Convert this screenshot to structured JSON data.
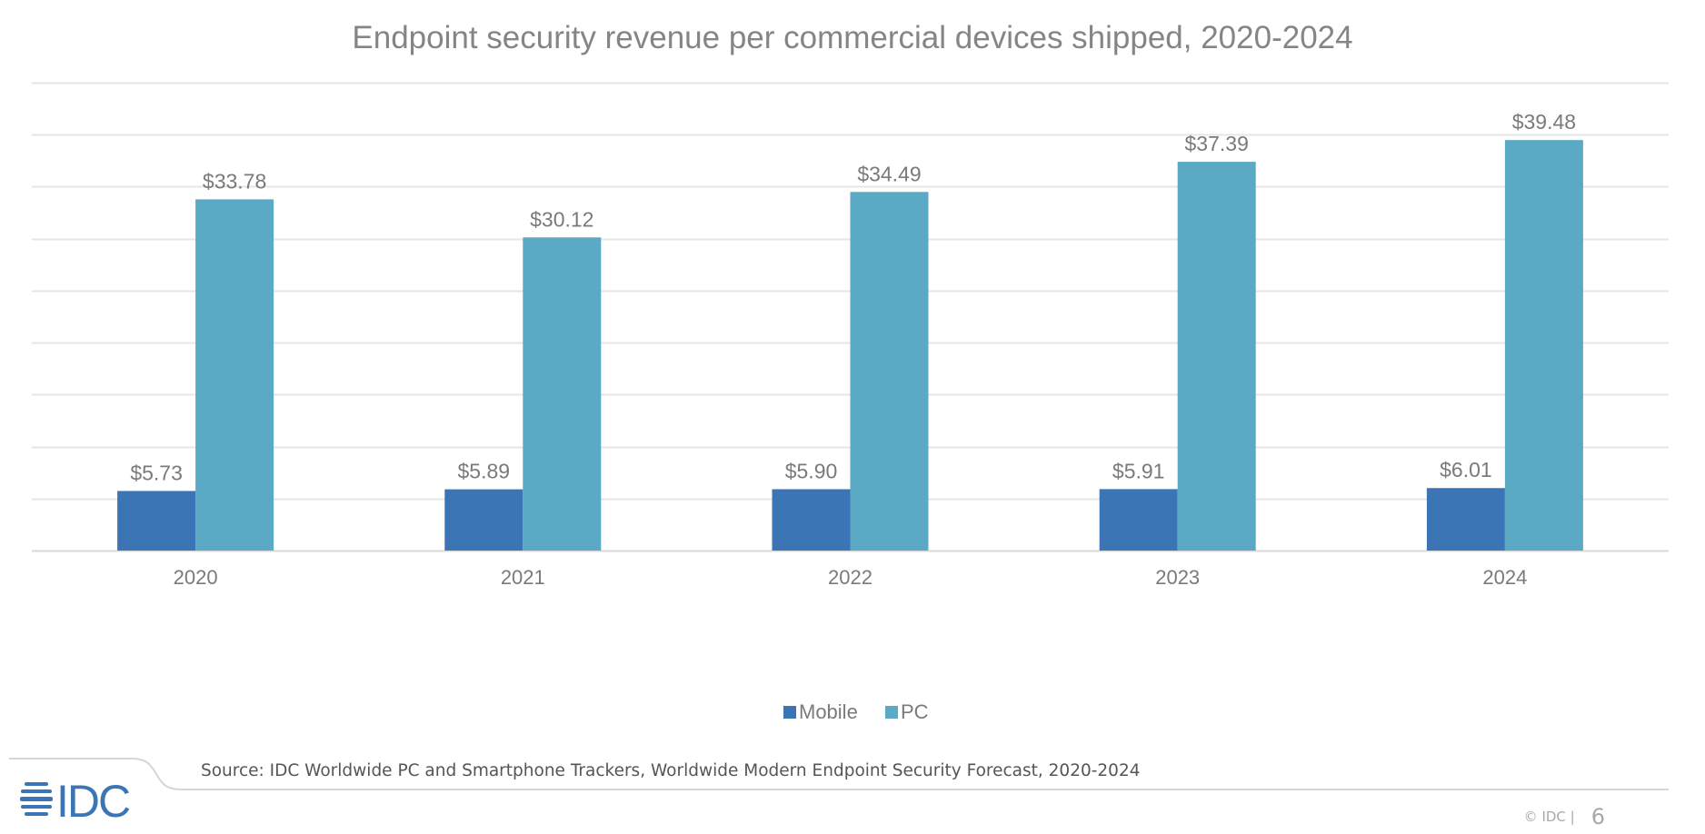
{
  "page": {
    "source_text": "Source: IDC Worldwide PC and Smartphone Trackers, Worldwide Modern Endpoint Security Forecast, 2020-2024",
    "brand": "IDC",
    "copyright": "© IDC |",
    "page_number": "6",
    "colors": {
      "mobile": "#3c75b5",
      "pc": "#5baac5",
      "title": "#858585",
      "brand": "#3c75b5"
    }
  },
  "chart_data": {
    "type": "bar",
    "title": "Endpoint security revenue per commercial devices shipped, 2020-2024",
    "xlabel": "",
    "ylabel": "",
    "categories": [
      "2020",
      "2021",
      "2022",
      "2023",
      "2024"
    ],
    "series": [
      {
        "name": "Mobile",
        "color": "#3c75b5",
        "values": [
          5.73,
          5.89,
          5.9,
          5.91,
          6.01
        ],
        "labels": [
          "$5.73",
          "$5.89",
          "$5.90",
          "$5.91",
          "$6.01"
        ]
      },
      {
        "name": "PC",
        "color": "#5baac5",
        "values": [
          33.78,
          30.12,
          34.49,
          37.39,
          39.48
        ],
        "labels": [
          "$33.78",
          "$30.12",
          "$34.49",
          "$37.39",
          "$39.48"
        ]
      }
    ],
    "ylim": [
      0,
      45
    ],
    "ytick_step": 5,
    "grid": true,
    "y_axis_labels_visible": false,
    "legend": "bottom-center"
  }
}
